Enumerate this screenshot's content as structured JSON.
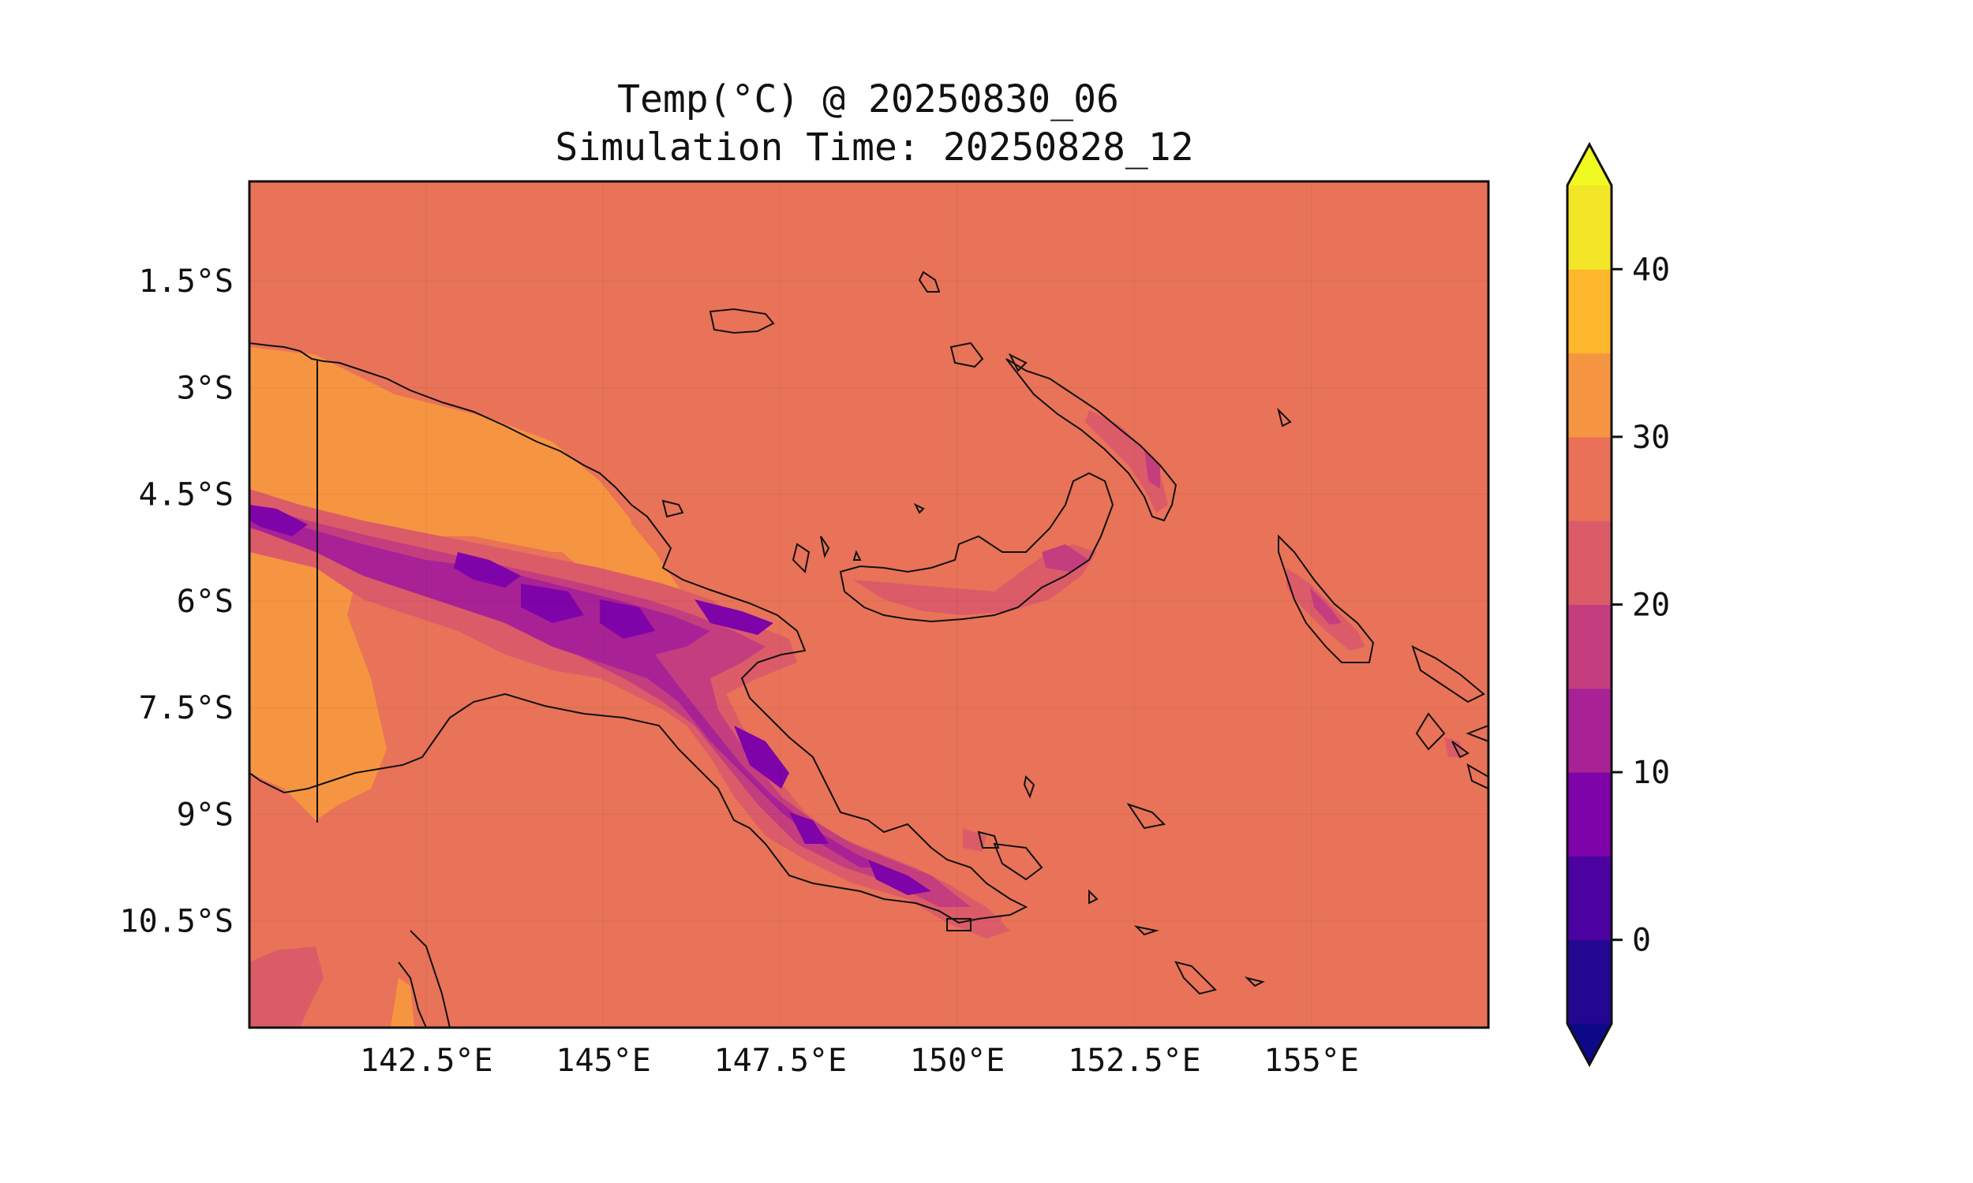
{
  "figure": {
    "title_line1": "Temp(°C) @ 20250830_06",
    "title_line2": "Simulation Time: 20250828_12"
  },
  "map": {
    "extent": {
      "lon_min": 140.0,
      "lon_max": 157.5,
      "lat_min": -12.0,
      "lat_max": -0.1
    },
    "x_ticks": [
      {
        "value": 142.5,
        "label": "142.5°E"
      },
      {
        "value": 145.0,
        "label": "145°E"
      },
      {
        "value": 147.5,
        "label": "147.5°E"
      },
      {
        "value": 150.0,
        "label": "150°E"
      },
      {
        "value": 152.5,
        "label": "152.5°E"
      },
      {
        "value": 155.0,
        "label": "155°E"
      }
    ],
    "y_ticks": [
      {
        "value": -1.5,
        "label": "1.5°S"
      },
      {
        "value": -3.0,
        "label": "3°S"
      },
      {
        "value": -4.5,
        "label": "4.5°S"
      },
      {
        "value": -6.0,
        "label": "6°S"
      },
      {
        "value": -7.5,
        "label": "7.5°S"
      },
      {
        "value": -9.0,
        "label": "9°S"
      },
      {
        "value": -10.5,
        "label": "10.5°S"
      }
    ],
    "colors": {
      "ocean_fill": "#e87358",
      "frame": "#111111",
      "coastline": "#111111"
    }
  },
  "colorbar": {
    "colormap": "plasma",
    "range": [
      -5,
      45
    ],
    "extend": "both",
    "levels": [
      {
        "from": -5,
        "to": 0,
        "color": "#240790"
      },
      {
        "from": 0,
        "to": 5,
        "color": "#4c02a1"
      },
      {
        "from": 5,
        "to": 10,
        "color": "#7e03a8"
      },
      {
        "from": 10,
        "to": 15,
        "color": "#a82296"
      },
      {
        "from": 15,
        "to": 20,
        "color": "#c43e7f"
      },
      {
        "from": 20,
        "to": 25,
        "color": "#db5c68"
      },
      {
        "from": 25,
        "to": 30,
        "color": "#e97158"
      },
      {
        "from": 30,
        "to": 35,
        "color": "#f69541"
      },
      {
        "from": 35,
        "to": 40,
        "color": "#fdb72c"
      },
      {
        "from": 40,
        "to": 45,
        "color": "#f3e528"
      }
    ],
    "under_color": "#0d0887",
    "over_color": "#f0f921",
    "ticks": [
      {
        "value": 0,
        "label": "0"
      },
      {
        "value": 10,
        "label": "10"
      },
      {
        "value": 20,
        "label": "20"
      },
      {
        "value": 30,
        "label": "30"
      },
      {
        "value": 40,
        "label": "40"
      }
    ]
  }
}
